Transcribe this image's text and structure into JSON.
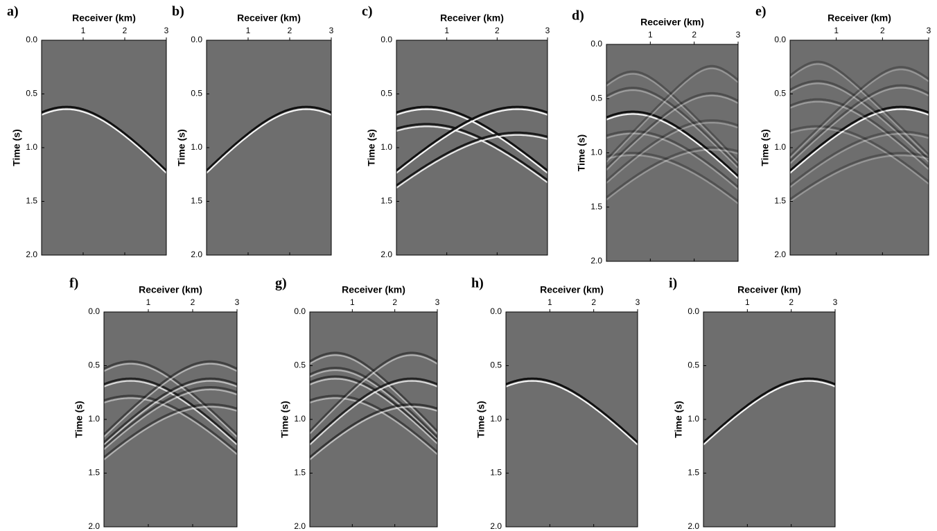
{
  "chart_data": [
    {
      "type": "seismic",
      "label": "a)",
      "xlabel": "Receiver (km)",
      "ylabel": "Time (s)",
      "xlim": [
        0,
        3
      ],
      "xticks": [
        1,
        2,
        3
      ],
      "ylim": [
        0,
        2
      ],
      "yticks": [
        {
          "value": 0,
          "label": "0.0"
        },
        {
          "value": 0.5,
          "label": "0.5"
        },
        {
          "value": 1,
          "label": "1.0"
        },
        {
          "value": 1.5,
          "label": "1.5"
        },
        {
          "value": 2,
          "label": "2.0"
        }
      ],
      "events": [
        {
          "x0": 0.6,
          "t0": 0.62,
          "v": 2.3,
          "amp": 1
        }
      ]
    },
    {
      "type": "seismic",
      "label": "b)",
      "xlabel": "Receiver (km)",
      "ylabel": "Time (s)",
      "xlim": [
        0,
        3
      ],
      "xticks": [
        1,
        2,
        3
      ],
      "ylim": [
        0,
        2
      ],
      "yticks": [
        {
          "value": 0,
          "label": "0.0"
        },
        {
          "value": 0.5,
          "label": "0.5"
        },
        {
          "value": 1,
          "label": "1.0"
        },
        {
          "value": 1.5,
          "label": "1.5"
        },
        {
          "value": 2,
          "label": "2.0"
        }
      ],
      "events": [
        {
          "x0": 2.4,
          "t0": 0.62,
          "v": 2.3,
          "amp": 1
        }
      ]
    },
    {
      "type": "seismic",
      "label": "c)",
      "xlabel": "Receiver (km)",
      "ylabel": "Time (s)",
      "xlim": [
        0,
        3
      ],
      "xticks": [
        1,
        2,
        3
      ],
      "ylim": [
        0,
        2
      ],
      "yticks": [
        {
          "value": 0,
          "label": "0.0"
        },
        {
          "value": 0.5,
          "label": "0.5"
        },
        {
          "value": 1,
          "label": "1.0"
        },
        {
          "value": 1.5,
          "label": "1.5"
        },
        {
          "value": 2,
          "label": "2.0"
        }
      ],
      "events": [
        {
          "x0": 0.6,
          "t0": 0.62,
          "v": 2.3,
          "amp": 1
        },
        {
          "x0": 0.6,
          "t0": 0.78,
          "v": 2.3,
          "amp": 0.9
        },
        {
          "x0": 2.4,
          "t0": 0.62,
          "v": 2.3,
          "amp": 1
        },
        {
          "x0": 2.4,
          "t0": 0.86,
          "v": 2.3,
          "amp": 0.9
        }
      ]
    },
    {
      "type": "seismic",
      "label": "d)",
      "xlabel": "Receiver (km)",
      "ylabel": "Time (s)",
      "xlim": [
        0,
        3
      ],
      "xticks": [
        1,
        2,
        3
      ],
      "ylim": [
        0,
        2
      ],
      "yticks": [
        {
          "value": 0,
          "label": "0.0"
        },
        {
          "value": 0.5,
          "label": "0.5"
        },
        {
          "value": 1,
          "label": "1.0"
        },
        {
          "value": 1.5,
          "label": "1.5"
        },
        {
          "value": 2,
          "label": "2.0"
        }
      ],
      "events": [
        {
          "x0": 0.6,
          "t0": 0.62,
          "v": 2.3,
          "amp": 1
        },
        {
          "x0": 0.6,
          "t0": 0.25,
          "v": 2.3,
          "amp": 0.3
        },
        {
          "x0": 0.6,
          "t0": 0.4,
          "v": 2.3,
          "amp": 0.35
        },
        {
          "x0": 0.6,
          "t0": 0.8,
          "v": 2.3,
          "amp": 0.35
        },
        {
          "x0": 0.6,
          "t0": 1.0,
          "v": 2.3,
          "amp": 0.3
        },
        {
          "x0": 2.4,
          "t0": 0.2,
          "v": 2.3,
          "amp": 0.3
        },
        {
          "x0": 2.4,
          "t0": 0.45,
          "v": 2.3,
          "amp": 0.35
        },
        {
          "x0": 2.4,
          "t0": 0.7,
          "v": 2.3,
          "amp": 0.3
        },
        {
          "x0": 2.4,
          "t0": 0.95,
          "v": 2.3,
          "amp": 0.3
        }
      ]
    },
    {
      "type": "seismic",
      "label": "e)",
      "xlabel": "Receiver (km)",
      "ylabel": "Time (s)",
      "xlim": [
        0,
        3
      ],
      "xticks": [
        1,
        2,
        3
      ],
      "ylim": [
        0,
        2
      ],
      "yticks": [
        {
          "value": 0,
          "label": "0.0"
        },
        {
          "value": 0.5,
          "label": "0.5"
        },
        {
          "value": 1,
          "label": "1.0"
        },
        {
          "value": 1.5,
          "label": "1.5"
        },
        {
          "value": 2,
          "label": "2.0"
        }
      ],
      "events": [
        {
          "x0": 2.4,
          "t0": 0.62,
          "v": 2.3,
          "amp": 1
        },
        {
          "x0": 0.6,
          "t0": 0.2,
          "v": 2.3,
          "amp": 0.3
        },
        {
          "x0": 0.6,
          "t0": 0.38,
          "v": 2.3,
          "amp": 0.35
        },
        {
          "x0": 0.6,
          "t0": 0.55,
          "v": 2.3,
          "amp": 0.35
        },
        {
          "x0": 0.6,
          "t0": 0.8,
          "v": 2.3,
          "amp": 0.3
        },
        {
          "x0": 2.4,
          "t0": 0.25,
          "v": 2.3,
          "amp": 0.3
        },
        {
          "x0": 2.4,
          "t0": 0.42,
          "v": 2.3,
          "amp": 0.35
        },
        {
          "x0": 2.4,
          "t0": 0.85,
          "v": 2.3,
          "amp": 0.3
        },
        {
          "x0": 2.4,
          "t0": 1.05,
          "v": 2.3,
          "amp": 0.3
        }
      ]
    },
    {
      "type": "seismic",
      "label": "f)",
      "xlabel": "Receiver (km)",
      "ylabel": "Time (s)",
      "xlim": [
        0,
        3
      ],
      "xticks": [
        1,
        2,
        3
      ],
      "ylim": [
        0,
        2
      ],
      "yticks": [
        {
          "value": 0,
          "label": "0.0"
        },
        {
          "value": 0.5,
          "label": "0.5"
        },
        {
          "value": 1,
          "label": "1.0"
        },
        {
          "value": 1.5,
          "label": "1.5"
        },
        {
          "value": 2,
          "label": "2.0"
        }
      ],
      "events": [
        {
          "x0": 0.6,
          "t0": 0.46,
          "v": 2.3,
          "amp": 0.5
        },
        {
          "x0": 0.6,
          "t0": 0.62,
          "v": 2.3,
          "amp": 0.8
        },
        {
          "x0": 0.6,
          "t0": 0.78,
          "v": 2.3,
          "amp": 0.5
        },
        {
          "x0": 2.4,
          "t0": 0.46,
          "v": 2.3,
          "amp": 0.5
        },
        {
          "x0": 2.4,
          "t0": 0.62,
          "v": 2.3,
          "amp": 0.6
        },
        {
          "x0": 2.4,
          "t0": 0.7,
          "v": 2.3,
          "amp": 0.5
        },
        {
          "x0": 2.4,
          "t0": 0.86,
          "v": 2.3,
          "amp": 0.5
        }
      ]
    },
    {
      "type": "seismic",
      "label": "g)",
      "xlabel": "Receiver (km)",
      "ylabel": "Time (s)",
      "xlim": [
        0,
        3
      ],
      "xticks": [
        1,
        2,
        3
      ],
      "ylim": [
        0,
        2
      ],
      "yticks": [
        {
          "value": 0,
          "label": "0.0"
        },
        {
          "value": 0.5,
          "label": "0.5"
        },
        {
          "value": 1,
          "label": "1.0"
        },
        {
          "value": 1.5,
          "label": "1.5"
        },
        {
          "value": 2,
          "label": "2.0"
        }
      ],
      "events": [
        {
          "x0": 0.6,
          "t0": 0.38,
          "v": 2.3,
          "amp": 0.5
        },
        {
          "x0": 0.6,
          "t0": 0.52,
          "v": 2.3,
          "amp": 0.5
        },
        {
          "x0": 0.6,
          "t0": 0.6,
          "v": 2.3,
          "amp": 0.6
        },
        {
          "x0": 0.6,
          "t0": 0.78,
          "v": 2.3,
          "amp": 0.5
        },
        {
          "x0": 2.4,
          "t0": 0.38,
          "v": 2.3,
          "amp": 0.5
        },
        {
          "x0": 2.4,
          "t0": 0.62,
          "v": 2.3,
          "amp": 0.8
        },
        {
          "x0": 2.4,
          "t0": 0.86,
          "v": 2.3,
          "amp": 0.6
        }
      ]
    },
    {
      "type": "seismic",
      "label": "h)",
      "xlabel": "Receiver (km)",
      "ylabel": "Time (s)",
      "xlim": [
        0,
        3
      ],
      "xticks": [
        1,
        2,
        3
      ],
      "ylim": [
        0,
        2
      ],
      "yticks": [
        {
          "value": 0,
          "label": "0.0"
        },
        {
          "value": 0.5,
          "label": "0.5"
        },
        {
          "value": 1,
          "label": "1.0"
        },
        {
          "value": 1.5,
          "label": "1.5"
        },
        {
          "value": 2,
          "label": "2.0"
        }
      ],
      "events": [
        {
          "x0": 0.6,
          "t0": 0.62,
          "v": 2.3,
          "amp": 1
        }
      ]
    },
    {
      "type": "seismic",
      "label": "i)",
      "xlabel": "Receiver (km)",
      "ylabel": "Time (s)",
      "xlim": [
        0,
        3
      ],
      "xticks": [
        1,
        2,
        3
      ],
      "ylim": [
        0,
        2
      ],
      "yticks": [
        {
          "value": 0,
          "label": "0.0"
        },
        {
          "value": 0.5,
          "label": "0.5"
        },
        {
          "value": 1,
          "label": "1.0"
        },
        {
          "value": 1.5,
          "label": "1.5"
        },
        {
          "value": 2,
          "label": "2.0"
        }
      ],
      "events": [
        {
          "x0": 2.4,
          "t0": 0.62,
          "v": 2.3,
          "amp": 1
        }
      ]
    }
  ]
}
